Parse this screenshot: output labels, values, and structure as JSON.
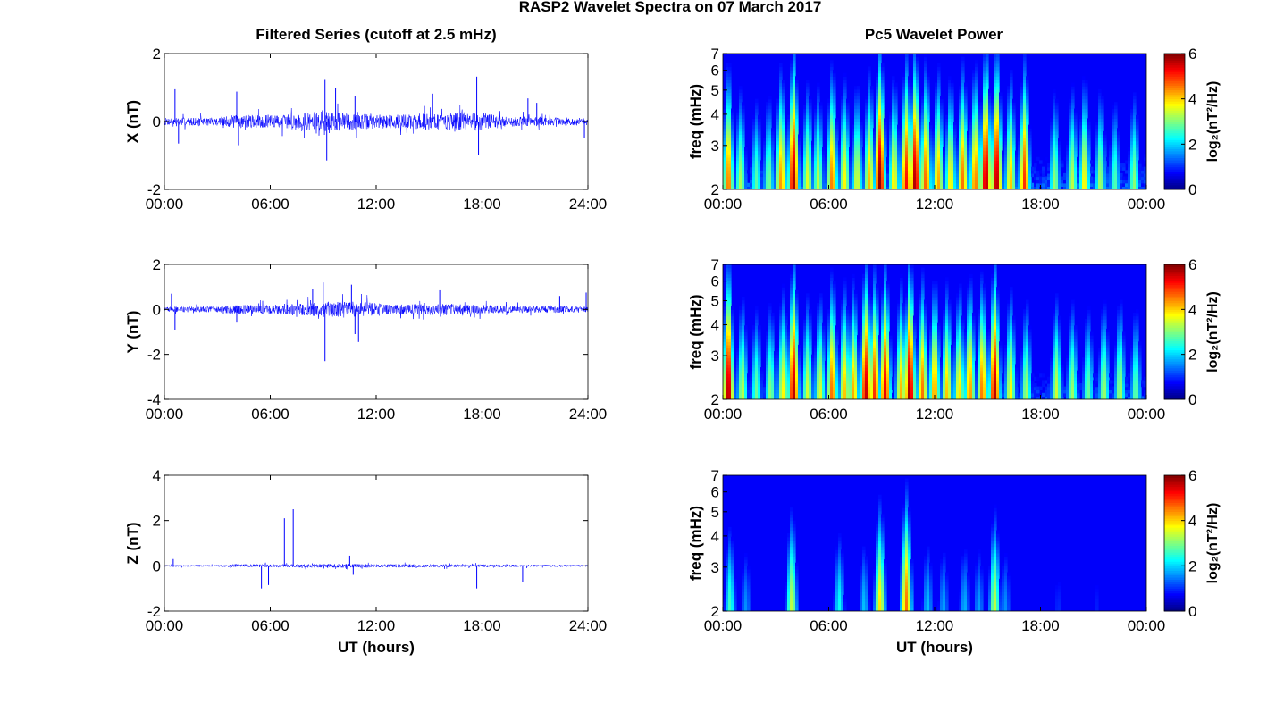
{
  "figure": {
    "title": "RASP2 Wavelet Spectra on 07 March 2017",
    "left_title": "Filtered Series (cutoff at 2.5 mHz)",
    "right_title": "Pc5 Wavelet Power",
    "bottom_xlabel": "UT (hours)"
  },
  "chart_data": [
    {
      "type": "line",
      "panel": "X",
      "ylabel": "X (nT)",
      "ylim": [
        -2,
        2
      ],
      "yticks": [
        "2",
        "0",
        "-2"
      ],
      "xlim_hours": [
        0,
        24
      ],
      "xticks": [
        "00:00",
        "06:00",
        "12:00",
        "18:00",
        "24:00"
      ],
      "series": [
        {
          "color": "#0000ff",
          "base_amplitude": 0.2,
          "activity": [
            [
              0,
              0.55
            ],
            [
              3,
              0.6
            ],
            [
              4,
              1.0
            ],
            [
              6,
              0.9
            ],
            [
              9,
              1.5
            ],
            [
              10.5,
              1.3
            ],
            [
              12,
              1.0
            ],
            [
              15,
              1.2
            ],
            [
              17.8,
              1.4
            ],
            [
              19,
              0.8
            ],
            [
              22,
              0.6
            ],
            [
              24,
              0.55
            ]
          ],
          "spikes": [
            [
              0.6,
              0.95
            ],
            [
              0.8,
              -0.65
            ],
            [
              4.1,
              0.88
            ],
            [
              4.2,
              -0.7
            ],
            [
              9.1,
              1.25
            ],
            [
              9.2,
              -1.15
            ],
            [
              9.7,
              0.98
            ],
            [
              10.8,
              0.75
            ],
            [
              15.2,
              0.82
            ],
            [
              17.7,
              1.32
            ],
            [
              17.8,
              -1.0
            ],
            [
              20.6,
              0.68
            ],
            [
              21.1,
              0.55
            ],
            [
              23.8,
              -0.5
            ]
          ]
        }
      ]
    },
    {
      "type": "line",
      "panel": "Y",
      "ylabel": "Y (nT)",
      "ylim": [
        -4,
        2
      ],
      "yticks": [
        "2",
        "0",
        "-2",
        "-4"
      ],
      "xlim_hours": [
        0,
        24
      ],
      "xticks": [
        "00:00",
        "06:00",
        "12:00",
        "18:00",
        "24:00"
      ],
      "series": [
        {
          "color": "#0000ff",
          "base_amplitude": 0.2,
          "activity": [
            [
              0,
              0.6
            ],
            [
              3,
              0.6
            ],
            [
              4,
              1.1
            ],
            [
              6,
              1.0
            ],
            [
              8,
              1.3
            ],
            [
              9,
              1.7
            ],
            [
              11,
              1.7
            ],
            [
              13,
              1.1
            ],
            [
              16,
              1.3
            ],
            [
              18,
              1.0
            ],
            [
              20,
              0.8
            ],
            [
              24,
              0.7
            ]
          ],
          "spikes": [
            [
              0.4,
              0.7
            ],
            [
              0.6,
              -0.9
            ],
            [
              4.1,
              -0.55
            ],
            [
              8.4,
              0.9
            ],
            [
              9.0,
              1.2
            ],
            [
              9.1,
              -2.3
            ],
            [
              10.6,
              1.1
            ],
            [
              10.8,
              -1.1
            ],
            [
              11.0,
              -1.45
            ],
            [
              15.6,
              0.85
            ],
            [
              22.4,
              0.6
            ],
            [
              23.9,
              0.75
            ]
          ]
        }
      ]
    },
    {
      "type": "line",
      "panel": "Z",
      "ylabel": "Z (nT)",
      "ylim": [
        -2,
        4
      ],
      "yticks": [
        "4",
        "2",
        "0",
        "-2"
      ],
      "xlim_hours": [
        0,
        24
      ],
      "xticks": [
        "00:00",
        "06:00",
        "12:00",
        "18:00",
        "24:00"
      ],
      "xlabel": "UT (hours)",
      "series": [
        {
          "color": "#0000ff",
          "base_amplitude": 0.06,
          "activity": [
            [
              0,
              0.7
            ],
            [
              3,
              0.6
            ],
            [
              4,
              1.2
            ],
            [
              6,
              1.1
            ],
            [
              9,
              1.4
            ],
            [
              11,
              1.4
            ],
            [
              14,
              1.2
            ],
            [
              17,
              1.1
            ],
            [
              20,
              0.9
            ],
            [
              24,
              0.8
            ]
          ],
          "spikes": [
            [
              5.5,
              -1.0
            ],
            [
              5.9,
              -0.85
            ],
            [
              6.8,
              2.1
            ],
            [
              7.3,
              2.5
            ],
            [
              10.5,
              0.45
            ],
            [
              10.7,
              -0.4
            ],
            [
              17.7,
              -1.0
            ],
            [
              20.3,
              -0.7
            ],
            [
              0.5,
              0.3
            ]
          ]
        }
      ]
    },
    {
      "type": "heatmap",
      "panel": "X",
      "ylabel": "freq (mHz)",
      "yscale": "log",
      "ylim_mHz": [
        2,
        7
      ],
      "yticks": [
        "2",
        "3",
        "4",
        "5",
        "6",
        "7"
      ],
      "xlim_hours": [
        0,
        24
      ],
      "xticks": [
        "00:00",
        "06:00",
        "12:00",
        "18:00",
        "00:00"
      ],
      "colorbar": {
        "label": "log₂(nT²/Hz)",
        "range": [
          0,
          6
        ],
        "ticks": [
          "0",
          "2",
          "4",
          "6"
        ]
      },
      "floor_level": 1.4,
      "events": [
        {
          "t": 0.3,
          "level": 4.7
        },
        {
          "t": 1.0,
          "level": 3.3
        },
        {
          "t": 1.9,
          "level": 2.8
        },
        {
          "t": 2.6,
          "level": 3.0
        },
        {
          "t": 3.3,
          "level": 4.4
        },
        {
          "t": 4.0,
          "level": 5.8
        },
        {
          "t": 4.8,
          "level": 3.6
        },
        {
          "t": 5.4,
          "level": 3.4
        },
        {
          "t": 6.2,
          "level": 4.6
        },
        {
          "t": 6.9,
          "level": 3.8
        },
        {
          "t": 7.6,
          "level": 3.6
        },
        {
          "t": 8.3,
          "level": 4.2
        },
        {
          "t": 8.9,
          "level": 5.9
        },
        {
          "t": 9.7,
          "level": 3.9
        },
        {
          "t": 10.4,
          "level": 5.2
        },
        {
          "t": 10.9,
          "level": 5.8
        },
        {
          "t": 11.5,
          "level": 4.7
        },
        {
          "t": 12.2,
          "level": 4.3
        },
        {
          "t": 12.9,
          "level": 3.9
        },
        {
          "t": 13.6,
          "level": 4.6
        },
        {
          "t": 14.3,
          "level": 4.6
        },
        {
          "t": 14.9,
          "level": 5.8
        },
        {
          "t": 15.5,
          "level": 5.9
        },
        {
          "t": 16.3,
          "level": 4.1
        },
        {
          "t": 17.1,
          "level": 5.0
        },
        {
          "t": 18.8,
          "level": 3.2
        },
        {
          "t": 19.8,
          "level": 3.4
        },
        {
          "t": 20.5,
          "level": 3.9
        },
        {
          "t": 21.4,
          "level": 3.3
        },
        {
          "t": 22.2,
          "level": 2.8
        },
        {
          "t": 23.3,
          "level": 3.1
        }
      ]
    },
    {
      "type": "heatmap",
      "panel": "Y",
      "ylabel": "freq (mHz)",
      "yscale": "log",
      "ylim_mHz": [
        2,
        7
      ],
      "yticks": [
        "2",
        "3",
        "4",
        "5",
        "6",
        "7"
      ],
      "xlim_hours": [
        0,
        24
      ],
      "xticks": [
        "00:00",
        "06:00",
        "12:00",
        "18:00",
        "00:00"
      ],
      "colorbar": {
        "label": "log₂(nT²/Hz)",
        "range": [
          0,
          6
        ],
        "ticks": [
          "0",
          "2",
          "4",
          "6"
        ]
      },
      "floor_level": 1.2,
      "events": [
        {
          "t": 0.3,
          "level": 5.9
        },
        {
          "t": 1.1,
          "level": 3.4
        },
        {
          "t": 1.9,
          "level": 2.9
        },
        {
          "t": 2.7,
          "level": 3.1
        },
        {
          "t": 3.4,
          "level": 3.8
        },
        {
          "t": 4.0,
          "level": 5.7
        },
        {
          "t": 4.8,
          "level": 3.5
        },
        {
          "t": 5.5,
          "level": 3.6
        },
        {
          "t": 6.2,
          "level": 4.7
        },
        {
          "t": 6.9,
          "level": 4.1
        },
        {
          "t": 7.4,
          "level": 4.3
        },
        {
          "t": 8.1,
          "level": 5.6
        },
        {
          "t": 8.6,
          "level": 5.0
        },
        {
          "t": 9.2,
          "level": 5.4
        },
        {
          "t": 10.1,
          "level": 4.2
        },
        {
          "t": 10.6,
          "level": 5.9
        },
        {
          "t": 11.3,
          "level": 4.6
        },
        {
          "t": 12.0,
          "level": 4.4
        },
        {
          "t": 12.7,
          "level": 4.1
        },
        {
          "t": 13.4,
          "level": 4.0
        },
        {
          "t": 14.0,
          "level": 4.4
        },
        {
          "t": 14.7,
          "level": 4.6
        },
        {
          "t": 15.4,
          "level": 5.7
        },
        {
          "t": 16.3,
          "level": 3.8
        },
        {
          "t": 17.2,
          "level": 3.3
        },
        {
          "t": 18.9,
          "level": 3.5
        },
        {
          "t": 19.8,
          "level": 3.2
        },
        {
          "t": 20.7,
          "level": 2.9
        },
        {
          "t": 21.6,
          "level": 3.2
        },
        {
          "t": 22.5,
          "level": 3.3
        },
        {
          "t": 23.4,
          "level": 2.9
        }
      ]
    },
    {
      "type": "heatmap",
      "panel": "Z",
      "ylabel": "freq (mHz)",
      "yscale": "log",
      "ylim_mHz": [
        2,
        7
      ],
      "yticks": [
        "2",
        "3",
        "4",
        "5",
        "6",
        "7"
      ],
      "xlim_hours": [
        0,
        24
      ],
      "xticks": [
        "00:00",
        "06:00",
        "12:00",
        "18:00",
        "00:00"
      ],
      "xlabel": "UT (hours)",
      "colorbar": {
        "label": "log₂(nT²/Hz)",
        "range": [
          0,
          6
        ],
        "ticks": [
          "0",
          "2",
          "4",
          "6"
        ]
      },
      "floor_level": 0.6,
      "events": [
        {
          "t": 0.4,
          "level": 2.6
        },
        {
          "t": 1.3,
          "level": 1.6
        },
        {
          "t": 3.9,
          "level": 3.4
        },
        {
          "t": 6.6,
          "level": 2.3
        },
        {
          "t": 8.0,
          "level": 1.9
        },
        {
          "t": 8.9,
          "level": 3.9
        },
        {
          "t": 10.4,
          "level": 4.6
        },
        {
          "t": 11.6,
          "level": 1.9
        },
        {
          "t": 12.5,
          "level": 1.7
        },
        {
          "t": 13.7,
          "level": 1.8
        },
        {
          "t": 14.5,
          "level": 1.7
        },
        {
          "t": 15.4,
          "level": 3.4
        },
        {
          "t": 16.0,
          "level": 1.6
        },
        {
          "t": 19.0,
          "level": 1.0
        },
        {
          "t": 21.2,
          "level": 0.9
        }
      ]
    }
  ]
}
